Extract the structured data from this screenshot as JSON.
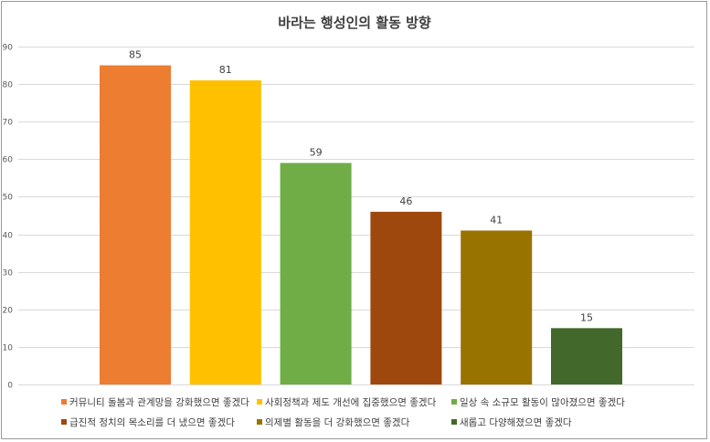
{
  "chart_data": {
    "type": "bar",
    "title": "바라는 행성인의 활동 방향",
    "categories": [
      "커뮤니티 돌봄과 관계망을 강화했으면 좋겠다",
      "사회정책과 제도 개선에 집중했으면 좋겠다",
      "일상 속 소규모 활동이 많아졌으면 좋겠다",
      "급진적 정치의 목소리를 더 냈으면 좋겠다",
      "의제별 활동을 더 강화했으면 좋겠다",
      "새롭고 다양해졌으면 좋겠다"
    ],
    "values": [
      85,
      81,
      59,
      46,
      41,
      15
    ],
    "colors": [
      "#ED7D31",
      "#FFC000",
      "#70AD47",
      "#9E480E",
      "#997300",
      "#43682B"
    ],
    "ylim": [
      0,
      90
    ],
    "yticks": [
      0,
      10,
      20,
      30,
      40,
      50,
      60,
      70,
      80,
      90
    ],
    "grid": true,
    "legend_position": "bottom",
    "xlabel": "",
    "ylabel": ""
  }
}
